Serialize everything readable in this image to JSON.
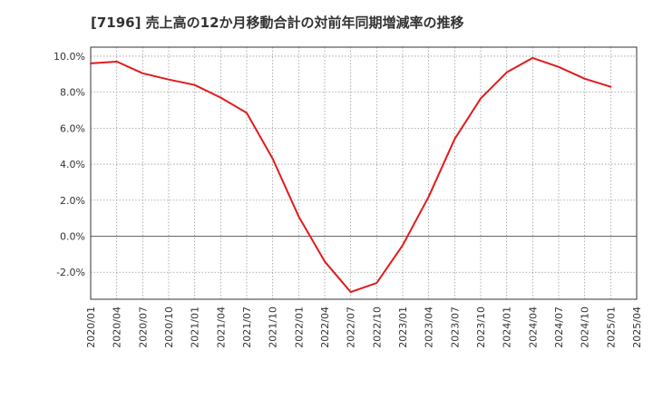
{
  "chart_data": {
    "type": "line",
    "title": "[7196]  売上高の12か月移動合計の対前年同期増減率の推移",
    "xlabel": "",
    "ylabel": "",
    "ylim": [
      -3.5,
      10.5
    ],
    "y_ticks": [
      -2.0,
      0.0,
      2.0,
      4.0,
      6.0,
      8.0,
      10.0
    ],
    "y_tick_labels": [
      "-2.0%",
      "0.0%",
      "2.0%",
      "4.0%",
      "6.0%",
      "8.0%",
      "10.0%"
    ],
    "x_ticks": [
      "2020/01",
      "2020/04",
      "2020/07",
      "2020/10",
      "2021/01",
      "2021/04",
      "2021/07",
      "2021/10",
      "2022/01",
      "2022/04",
      "2022/07",
      "2022/10",
      "2023/01",
      "2023/04",
      "2023/07",
      "2023/10",
      "2024/01",
      "2024/04",
      "2024/07",
      "2024/10",
      "2025/01",
      "2025/04"
    ],
    "grid": true,
    "colors": {
      "line": "#e31a1c",
      "grid": "#999999",
      "axis": "#333333"
    },
    "series": [
      {
        "name": "増減率",
        "x": [
          "2020/01",
          "2020/04",
          "2020/07",
          "2020/10",
          "2021/01",
          "2021/04",
          "2021/07",
          "2021/10",
          "2022/01",
          "2022/04",
          "2022/07",
          "2022/10",
          "2023/01",
          "2023/04",
          "2023/07",
          "2023/10",
          "2024/01",
          "2024/04",
          "2024/07",
          "2024/10",
          "2025/01"
        ],
        "values": [
          9.6,
          9.7,
          9.05,
          8.7,
          8.4,
          7.7,
          6.85,
          4.3,
          1.1,
          -1.4,
          -3.1,
          -2.6,
          -0.5,
          2.2,
          5.4,
          7.65,
          9.1,
          9.9,
          9.4,
          8.75,
          8.3
        ]
      }
    ]
  }
}
